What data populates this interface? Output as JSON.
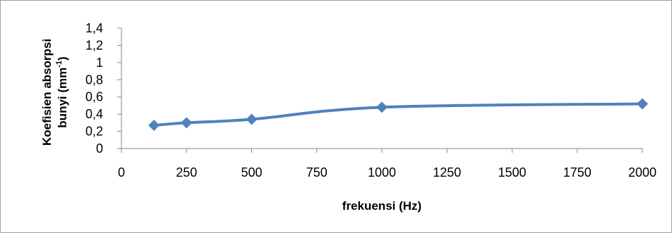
{
  "chart_data": {
    "type": "line",
    "title": "",
    "xlabel": "frekuensi (Hz)",
    "ylabel_line1": "Koefisien absorpsi",
    "ylabel_line2_prefix": "bunyi  (mm",
    "ylabel_line2_superscript": "-1",
    "ylabel_line2_suffix": ")",
    "x_ticks": [
      "0",
      "250",
      "500",
      "750",
      "1000",
      "1250",
      "1500",
      "1750",
      "2000"
    ],
    "y_ticks": [
      "0",
      "0,2",
      "0,4",
      "0,6",
      "0,8",
      "1",
      "1,2",
      "1,4"
    ],
    "xlim": [
      0,
      2000
    ],
    "ylim": [
      0,
      1.4
    ],
    "grid": false,
    "legend": "none",
    "series": [
      {
        "color": "#4f81bd",
        "marker": "diamond",
        "smooth": true,
        "x": [
          125,
          250,
          500,
          1000,
          2000
        ],
        "y": [
          0.27,
          0.3,
          0.34,
          0.48,
          0.52
        ]
      }
    ]
  }
}
